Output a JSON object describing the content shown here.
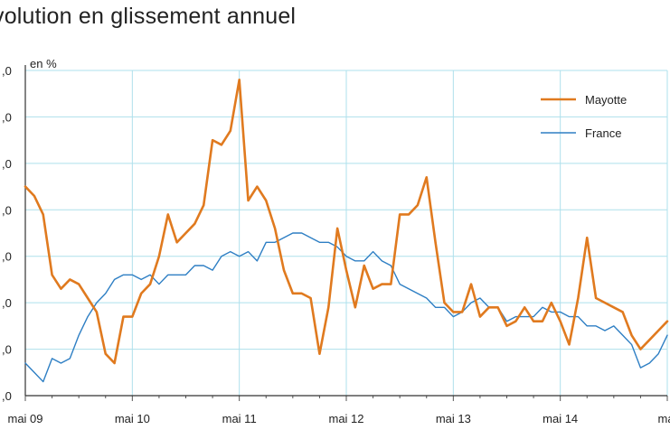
{
  "chart_title": "volution en glissement annuel",
  "chart_data": {
    "type": "line",
    "title": "volution en glissement annuel",
    "ylabel": "en %",
    "x_tick_labels": [
      "mai 09",
      "mai 10",
      "mai 11",
      "mai 12",
      "mai 13",
      "mai 14",
      "mai"
    ],
    "y_tick_labels": [
      ",0",
      ",0",
      ",0",
      ",0",
      ",0",
      ",0",
      ",0",
      ",0"
    ],
    "xlim": [
      0,
      72
    ],
    "ylim": [
      -1,
      6
    ],
    "grid": true,
    "legend_position": "top-right",
    "series": [
      {
        "name": "Mayotte",
        "color": "#e07a1f",
        "x": [
          0,
          1,
          2,
          3,
          4,
          5,
          6,
          7,
          8,
          9,
          10,
          11,
          12,
          13,
          14,
          15,
          16,
          17,
          18,
          19,
          20,
          21,
          22,
          23,
          24,
          25,
          26,
          27,
          28,
          29,
          30,
          31,
          32,
          33,
          34,
          35,
          36,
          37,
          38,
          39,
          40,
          41,
          42,
          43,
          44,
          45,
          46,
          47,
          48,
          49,
          50,
          51,
          52,
          53,
          54,
          55,
          56,
          57,
          58,
          59,
          60,
          61,
          62,
          63,
          64,
          65,
          66,
          67,
          68,
          69,
          70,
          71,
          72
        ],
        "values": [
          3.5,
          3.3,
          2.9,
          1.6,
          1.3,
          1.5,
          1.4,
          1.1,
          0.8,
          -0.1,
          -0.3,
          0.7,
          0.7,
          1.2,
          1.4,
          2.0,
          2.9,
          2.3,
          2.5,
          2.7,
          3.1,
          4.5,
          4.4,
          4.7,
          5.8,
          3.2,
          3.5,
          3.2,
          2.6,
          1.7,
          1.2,
          1.2,
          1.1,
          -0.1,
          0.9,
          2.6,
          1.7,
          0.9,
          1.8,
          1.3,
          1.4,
          1.4,
          2.9,
          2.9,
          3.1,
          3.7,
          2.3,
          1.0,
          0.8,
          0.8,
          1.4,
          0.7,
          0.9,
          0.9,
          0.5,
          0.6,
          0.9,
          0.6,
          0.6,
          1.0,
          0.6,
          0.1,
          1.1,
          2.4,
          1.1,
          1.0,
          0.9,
          0.8,
          0.3,
          0.0,
          0.2,
          0.4,
          0.6
        ]
      },
      {
        "name": "France",
        "color": "#2e7fc4",
        "x": [
          0,
          1,
          2,
          3,
          4,
          5,
          6,
          7,
          8,
          9,
          10,
          11,
          12,
          13,
          14,
          15,
          16,
          17,
          18,
          19,
          20,
          21,
          22,
          23,
          24,
          25,
          26,
          27,
          28,
          29,
          30,
          31,
          32,
          33,
          34,
          35,
          36,
          37,
          38,
          39,
          40,
          41,
          42,
          43,
          44,
          45,
          46,
          47,
          48,
          49,
          50,
          51,
          52,
          53,
          54,
          55,
          56,
          57,
          58,
          59,
          60,
          61,
          62,
          63,
          64,
          65,
          66,
          67,
          68,
          69,
          70,
          71,
          72
        ],
        "values": [
          -0.3,
          -0.5,
          -0.7,
          -0.2,
          -0.3,
          -0.2,
          0.3,
          0.7,
          1.0,
          1.2,
          1.5,
          1.6,
          1.6,
          1.5,
          1.6,
          1.4,
          1.6,
          1.6,
          1.6,
          1.8,
          1.8,
          1.7,
          2.0,
          2.1,
          2.0,
          2.1,
          1.9,
          2.3,
          2.3,
          2.4,
          2.5,
          2.5,
          2.4,
          2.3,
          2.3,
          2.2,
          2.0,
          1.9,
          1.9,
          2.1,
          1.9,
          1.8,
          1.4,
          1.3,
          1.2,
          1.1,
          0.9,
          0.9,
          0.7,
          0.8,
          1.0,
          1.1,
          0.9,
          0.9,
          0.6,
          0.7,
          0.7,
          0.7,
          0.9,
          0.8,
          0.8,
          0.7,
          0.7,
          0.5,
          0.5,
          0.4,
          0.5,
          0.3,
          0.1,
          -0.4,
          -0.3,
          -0.1,
          0.3
        ]
      }
    ]
  }
}
